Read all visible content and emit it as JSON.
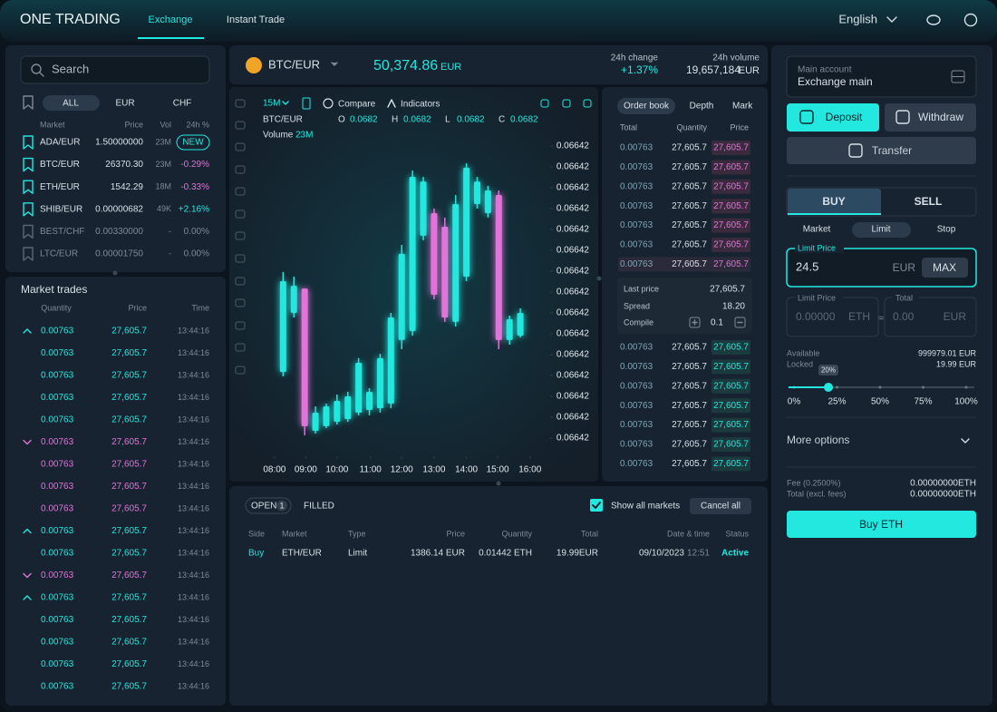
{
  "header": {
    "logo": "ONE TRADING",
    "nav": [
      "Exchange",
      "Instant Trade"
    ],
    "language": "English"
  },
  "markets": {
    "search": "Search",
    "tabs": [
      "ALL",
      "EUR",
      "CHF"
    ],
    "columns": [
      "Market",
      "Price",
      "Vol",
      "24h %"
    ],
    "rows": [
      {
        "pair": "ADA/EUR",
        "price": "1.50000000",
        "vol": "23M",
        "change": "NEW",
        "trend": "new"
      },
      {
        "pair": "BTC/EUR",
        "price": "26370.30",
        "vol": "23M",
        "change": "-0.29%",
        "trend": "down"
      },
      {
        "pair": "ETH/EUR",
        "price": "1542.29",
        "vol": "18M",
        "change": "-0.33%",
        "trend": "down"
      },
      {
        "pair": "SHIB/EUR",
        "price": "0.00000682",
        "vol": "49K",
        "change": "+2.16%",
        "trend": "up"
      },
      {
        "pair": "BEST/CHF",
        "price": "0.00330000",
        "vol": "-",
        "change": "0.00%",
        "trend": "flat"
      },
      {
        "pair": "LTC/EUR",
        "price": "0.00001750",
        "vol": "-",
        "change": "0.00%",
        "trend": "flat"
      }
    ]
  },
  "market_trades": {
    "title": "Market trades",
    "columns": [
      "Quantity",
      "Price",
      "Time"
    ],
    "rows": [
      {
        "quantity": "0.00763",
        "price": "27,605.7",
        "time": "13:44:16",
        "side": "buy",
        "arrow": true
      },
      {
        "quantity": "0.00763",
        "price": "27,605.7",
        "time": "13:44:16",
        "side": "buy",
        "arrow": false
      },
      {
        "quantity": "0.00763",
        "price": "27,605.7",
        "time": "13:44:16",
        "side": "buy",
        "arrow": false
      },
      {
        "quantity": "0.00763",
        "price": "27,605.7",
        "time": "13:44:16",
        "side": "buy",
        "arrow": false
      },
      {
        "quantity": "0.00763",
        "price": "27,605.7",
        "time": "13:44:16",
        "side": "buy",
        "arrow": false
      },
      {
        "quantity": "0.00763",
        "price": "27,605.7",
        "time": "13:44:16",
        "side": "sell",
        "arrow": true
      },
      {
        "quantity": "0.00763",
        "price": "27,605.7",
        "time": "13:44:16",
        "side": "sell",
        "arrow": false
      },
      {
        "quantity": "0.00763",
        "price": "27,605.7",
        "time": "13:44:16",
        "side": "sell",
        "arrow": false
      },
      {
        "quantity": "0.00763",
        "price": "27,605.7",
        "time": "13:44:16",
        "side": "sell",
        "arrow": false
      },
      {
        "quantity": "0.00763",
        "price": "27,605.7",
        "time": "13:44:16",
        "side": "buy",
        "arrow": true
      },
      {
        "quantity": "0.00763",
        "price": "27,605.7",
        "time": "13:44:16",
        "side": "buy",
        "arrow": false
      },
      {
        "quantity": "0.00763",
        "price": "27,605.7",
        "time": "13:44:16",
        "side": "sell",
        "arrow": true
      },
      {
        "quantity": "0.00763",
        "price": "27,605.7",
        "time": "13:44:16",
        "side": "buy",
        "arrow": true
      },
      {
        "quantity": "0.00763",
        "price": "27,605.7",
        "time": "13:44:16",
        "side": "buy",
        "arrow": false
      },
      {
        "quantity": "0.00763",
        "price": "27,605.7",
        "time": "13:44:16",
        "side": "buy",
        "arrow": false
      },
      {
        "quantity": "0.00763",
        "price": "27,605.7",
        "time": "13:44:16",
        "side": "buy",
        "arrow": false
      },
      {
        "quantity": "0.00763",
        "price": "27,605.7",
        "time": "13:44:16",
        "side": "buy",
        "arrow": false
      }
    ]
  },
  "ticker": {
    "pair": "BTC/EUR",
    "price": "50,374.86",
    "currency": "EUR",
    "change_label": "24h change",
    "change": "+1.37%",
    "volume_label": "24h volume",
    "volume": "19,657,184",
    "volume_currency": "EUR"
  },
  "chart_data": {
    "type": "candlestick",
    "interval": "15M",
    "compare": "Compare",
    "indicators": "Indicators",
    "legend": {
      "pair": "BTC/EUR",
      "fields": [
        {
          "key": "O",
          "value": "0.0682"
        },
        {
          "key": "H",
          "value": "0.0682"
        },
        {
          "key": "L",
          "value": "0.0682"
        },
        {
          "key": "C",
          "value": "0.0682"
        }
      ],
      "volume_label": "Volume",
      "volume": "23M"
    },
    "categories": [
      null,
      null,
      null,
      null,
      null,
      null,
      null,
      null,
      null,
      null,
      null,
      null,
      null,
      null,
      null,
      null,
      null,
      null,
      null,
      null,
      null,
      null,
      null
    ],
    "open": [
      3.17,
      6.0,
      7.17,
      0.35,
      0.57,
      0.78,
      0.91,
      1.22,
      1.35,
      1.43,
      1.65,
      4.7,
      5.13,
      9.7,
      10.78,
      10.13,
      5.57,
      7.74,
      11.22,
      10.78,
      11.65,
      4.7,
      4.91
    ],
    "high": [
      7.96,
      7.74,
      7.17,
      1.52,
      1.65,
      2.09,
      2.22,
      3.83,
      2.39,
      4.04,
      6.0,
      9.26,
      12.83,
      12.52,
      11.0,
      10.57,
      11.65,
      13.17,
      12.52,
      12.09,
      11.87,
      5.87,
      6.22
    ],
    "low": [
      2.96,
      5.78,
      0.13,
      0.22,
      0.48,
      0.65,
      0.78,
      1.09,
      1.09,
      1.22,
      1.43,
      4.26,
      4.91,
      9.48,
      6.65,
      5.57,
      5.35,
      7.52,
      11.0,
      10.57,
      4.26,
      4.48,
      4.83
    ],
    "close": [
      7.52,
      7.3,
      0.57,
      1.22,
      1.52,
      1.78,
      2.0,
      3.61,
      2.22,
      3.83,
      5.78,
      8.83,
      12.52,
      12.3,
      6.87,
      5.78,
      11.22,
      12.96,
      12.3,
      11.87,
      4.7,
      5.7,
      6.0
    ],
    "up_color": "#22e8df",
    "down_color": "#e373da",
    "ylim": [
      -0.5,
      14.5
    ],
    "yticks": [
      {
        "value": 14,
        "label": "0.06642"
      },
      {
        "value": 13,
        "label": "0.06642"
      },
      {
        "value": 12,
        "label": "0.06642"
      },
      {
        "value": 11,
        "label": "0.06642"
      },
      {
        "value": 10,
        "label": "0.06642"
      },
      {
        "value": 9,
        "label": "0.06642"
      },
      {
        "value": 8,
        "label": "0.06642"
      },
      {
        "value": 7,
        "label": "0.06642"
      },
      {
        "value": 6,
        "label": "0.06642"
      },
      {
        "value": 5,
        "label": "0.06642"
      },
      {
        "value": 4,
        "label": "0.06642"
      },
      {
        "value": 3,
        "label": "0.06642"
      },
      {
        "value": 2,
        "label": "0.06642"
      },
      {
        "value": 1,
        "label": "0.06642"
      },
      {
        "value": 0,
        "label": "0.06642"
      }
    ],
    "xlim": [
      -2.3,
      24.6
    ],
    "xticks": [
      {
        "value": -0.8,
        "label": "08:00"
      },
      {
        "value": 2.1,
        "label": "09:00"
      },
      {
        "value": 5.0,
        "label": "10:00"
      },
      {
        "value": 8.1,
        "label": "11:00"
      },
      {
        "value": 11.0,
        "label": "12:00"
      },
      {
        "value": 14.0,
        "label": "13:00"
      },
      {
        "value": 17.0,
        "label": "14:00"
      },
      {
        "value": 19.9,
        "label": "15:00"
      },
      {
        "value": 22.9,
        "label": "16:00"
      }
    ]
  },
  "order_book": {
    "tabs": [
      "Order book",
      "Depth",
      "Mark"
    ],
    "columns": [
      "Total",
      "Quantity",
      "Price"
    ],
    "asks": [
      [
        "0.00763",
        "27,605.7",
        "27,605.7"
      ],
      [
        "0.00763",
        "27,605.7",
        "27,605.7"
      ],
      [
        "0.00763",
        "27,605.7",
        "27,605.7"
      ],
      [
        "0.00763",
        "27,605.7",
        "27,605.7"
      ],
      [
        "0.00763",
        "27,605.7",
        "27,605.7"
      ],
      [
        "0.00763",
        "27,605.7",
        "27,605.7"
      ],
      [
        "0.00763",
        "27,605.7",
        "27,605.7"
      ]
    ],
    "summary": {
      "last_price_label": "Last price",
      "last_price": "27,605.7",
      "spread_label": "Spread",
      "spread": "18.20",
      "compile_label": "Compile",
      "compile": "0.1"
    },
    "bids": [
      [
        "0.00763",
        "27,605.7",
        "27,605.7"
      ],
      [
        "0.00763",
        "27,605.7",
        "27,605.7"
      ],
      [
        "0.00763",
        "27,605.7",
        "27,605.7"
      ],
      [
        "0.00763",
        "27,605.7",
        "27,605.7"
      ],
      [
        "0.00763",
        "27,605.7",
        "27,605.7"
      ],
      [
        "0.00763",
        "27,605.7",
        "27,605.7"
      ],
      [
        "0.00763",
        "27,605.7",
        "27,605.7"
      ]
    ]
  },
  "orders": {
    "open_tab": "OPEN",
    "open_count": "1",
    "filled_tab": "FILLED",
    "show_all": "Show all markets",
    "cancel_all": "Cancel all",
    "columns": [
      "Side",
      "Market",
      "Type",
      "Price",
      "Quantity",
      "Total",
      "Date & time",
      "Status"
    ],
    "rows": [
      {
        "side": "Buy",
        "market": "ETH/EUR",
        "type": "Limit",
        "price": "1386.14 EUR",
        "quantity": "0.01442 ETH",
        "total": "19.99EUR",
        "date": "09/10/2023",
        "time": "12:51",
        "status": "Active"
      }
    ]
  },
  "trade_panel": {
    "account_label": "Main account",
    "account": "Exchange main",
    "deposit": "Deposit",
    "withdraw": "Withdraw",
    "transfer": "Transfer",
    "buy": "BUY",
    "sell": "SELL",
    "order_types": [
      "Market",
      "Limit",
      "Stop"
    ],
    "limit_price_label": "Limit Price",
    "limit_price": "24.5",
    "limit_currency": "EUR",
    "max": "MAX",
    "amount_label": "Limit Price",
    "amount": "0.00000",
    "amount_currency": "ETH",
    "approx": "≈",
    "total_label": "Total",
    "total": "0.00",
    "total_currency": "EUR",
    "available_label": "Available",
    "available": "999979.01 EUR",
    "locked_label": "Locked",
    "locked": "19.99 EUR",
    "slider": {
      "value": 20,
      "value_label": "20%",
      "ticks": [
        {
          "value": 0,
          "label": "0%"
        },
        {
          "value": 25,
          "label": "25%"
        },
        {
          "value": 50,
          "label": "50%"
        },
        {
          "value": 75,
          "label": "75%"
        },
        {
          "value": 100,
          "label": "100%"
        }
      ]
    },
    "more_options": "More options",
    "fee_label": "Fee (0.2500%)",
    "fee": "0.00000000ETH",
    "total_fees_label": "Total (excl. fees)",
    "total_fees": "0.00000000ETH",
    "submit": "Buy ETH"
  }
}
